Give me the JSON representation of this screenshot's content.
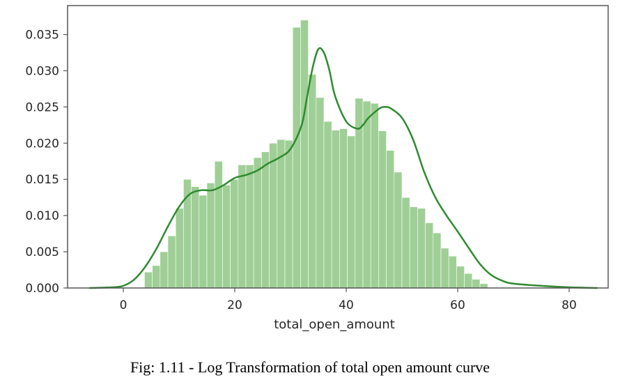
{
  "caption": "Fig: 1.11 - Log Transformation of total open amount curve",
  "chart_data": {
    "type": "histogram with KDE curve",
    "xlabel": "total_open_amount",
    "ylabel": "",
    "xlim": [
      -10,
      87
    ],
    "ylim": [
      0,
      0.039
    ],
    "x_ticks": [
      0,
      20,
      40,
      60,
      80
    ],
    "y_ticks": [
      0.0,
      0.005,
      0.01,
      0.015,
      0.02,
      0.025,
      0.03,
      0.035
    ],
    "grid": false,
    "colors": {
      "bars": "#9fcf96",
      "curve": "#2e8b2e",
      "axes": "#555555"
    },
    "histogram": {
      "bin_edges": [
        3.8,
        5.2,
        6.6,
        8.0,
        9.4,
        10.8,
        12.2,
        13.6,
        15.0,
        16.4,
        17.8,
        19.2,
        20.6,
        22.0,
        23.4,
        24.8,
        26.2,
        27.6,
        29.0,
        30.4,
        31.8,
        33.2,
        34.6,
        36.0,
        37.4,
        38.8,
        40.2,
        41.6,
        43.0,
        44.4,
        45.8,
        47.2,
        48.6,
        50.0,
        51.4,
        52.8,
        54.2,
        55.6,
        57.0,
        58.4,
        59.8,
        61.2,
        62.6,
        64.0,
        65.4
      ],
      "density": [
        0.0022,
        0.0031,
        0.005,
        0.0072,
        0.011,
        0.015,
        0.014,
        0.0128,
        0.0145,
        0.0175,
        0.0142,
        0.015,
        0.017,
        0.017,
        0.018,
        0.0188,
        0.02,
        0.0205,
        0.0204,
        0.036,
        0.037,
        0.0295,
        0.0263,
        0.023,
        0.0218,
        0.022,
        0.021,
        0.0262,
        0.0258,
        0.0255,
        0.0217,
        0.019,
        0.016,
        0.0125,
        0.0112,
        0.011,
        0.009,
        0.0076,
        0.0055,
        0.0044,
        0.003,
        0.002,
        0.0012,
        0.0006
      ]
    },
    "kde": {
      "x": [
        -6,
        -2,
        0,
        2,
        4,
        6,
        8,
        10,
        12,
        14,
        16,
        18,
        20,
        22,
        24,
        26,
        28,
        30,
        32,
        33,
        34,
        35,
        36,
        37,
        38,
        40,
        42,
        43,
        44,
        46,
        47,
        48,
        50,
        52,
        54,
        56,
        58,
        60,
        62,
        64,
        66,
        68,
        70,
        75,
        80,
        85
      ],
      "y": [
        0.0,
        0.0001,
        0.0003,
        0.0012,
        0.003,
        0.0055,
        0.0085,
        0.0112,
        0.013,
        0.0135,
        0.0135,
        0.0142,
        0.0152,
        0.0156,
        0.0162,
        0.0172,
        0.018,
        0.0192,
        0.0225,
        0.0265,
        0.0305,
        0.033,
        0.0325,
        0.03,
        0.0265,
        0.023,
        0.022,
        0.0225,
        0.0235,
        0.0248,
        0.025,
        0.0248,
        0.0235,
        0.0205,
        0.016,
        0.0125,
        0.01,
        0.0078,
        0.0055,
        0.0033,
        0.0018,
        0.001,
        0.0006,
        0.0003,
        0.0001,
        0.0
      ]
    }
  }
}
